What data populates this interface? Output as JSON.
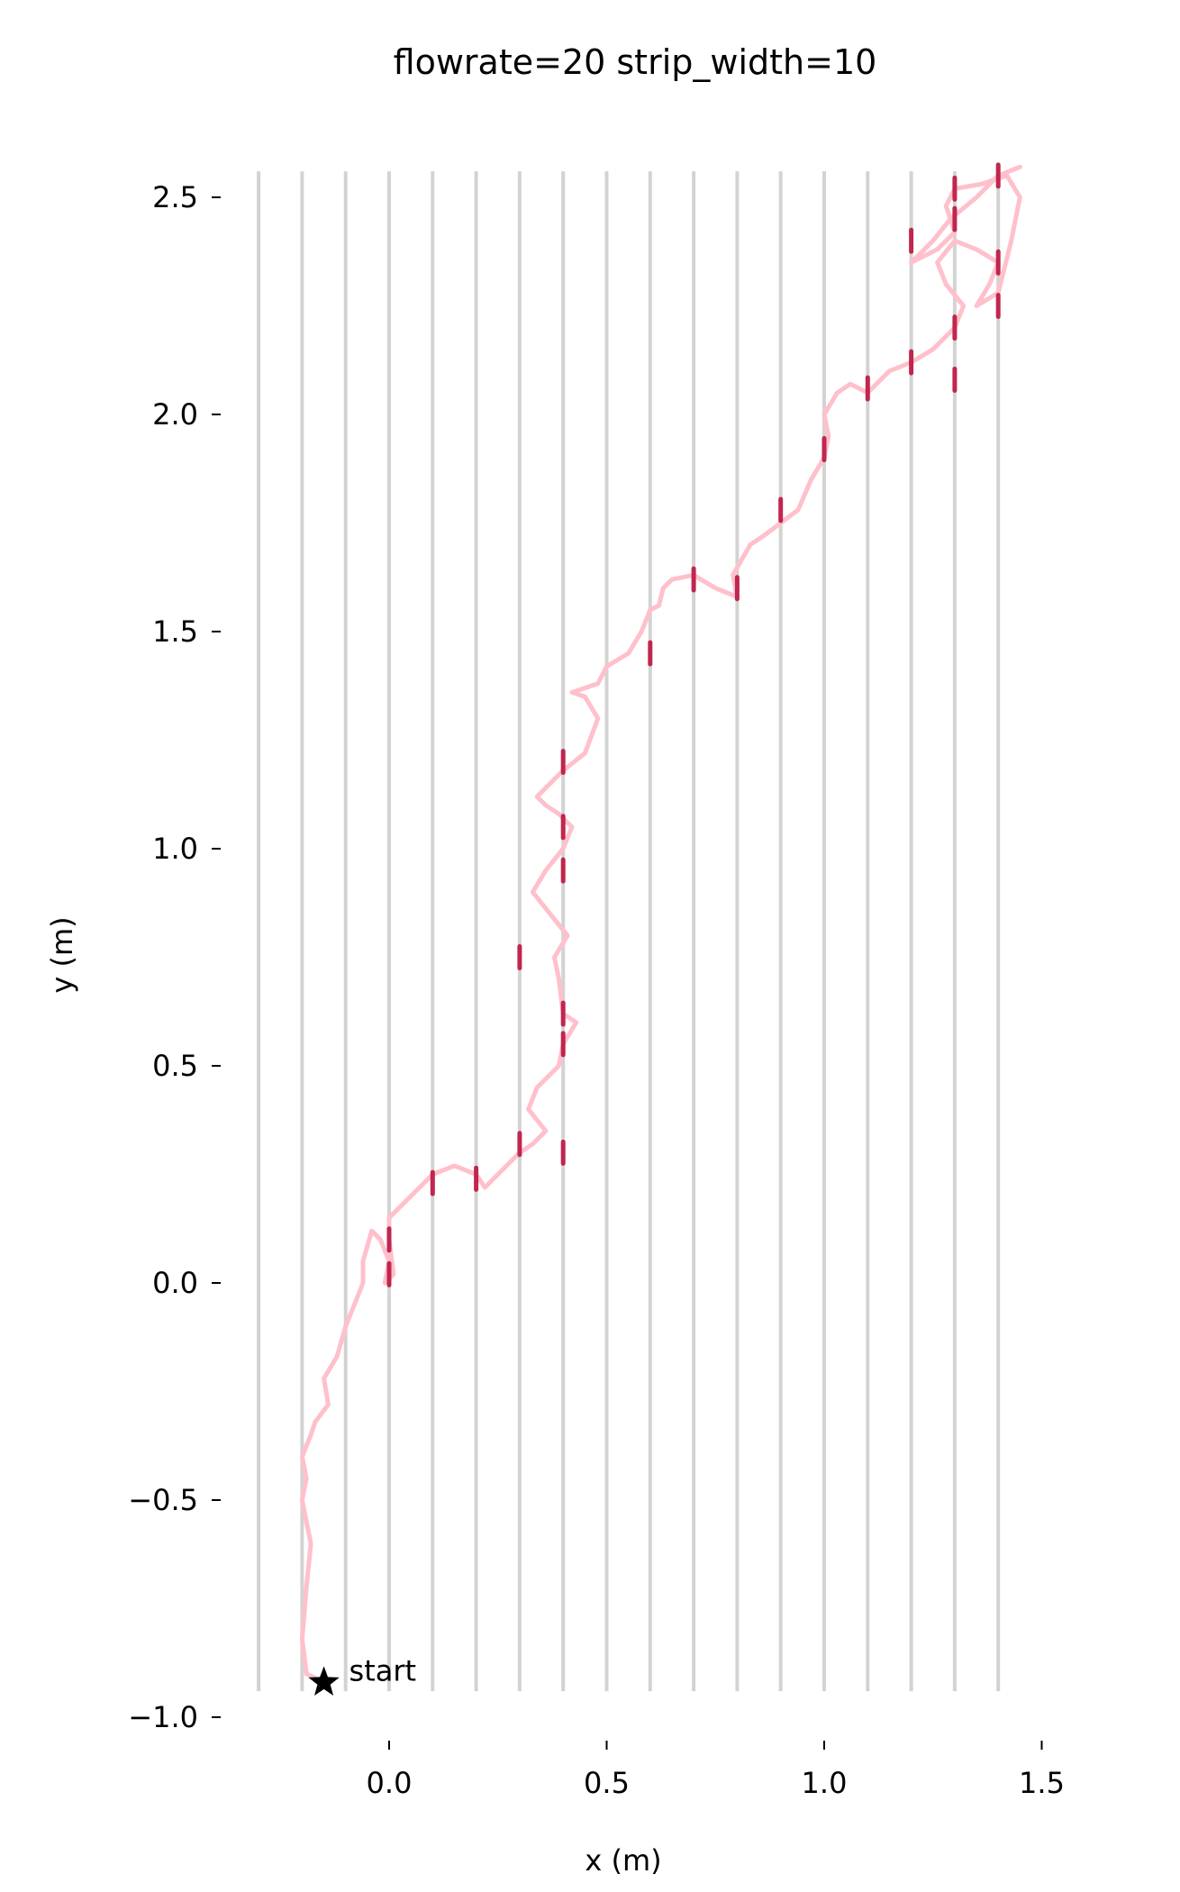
{
  "chart_data": {
    "type": "line",
    "title": "flowrate=20 strip_width=10",
    "xlabel": "x (m)",
    "ylabel": "y (m)",
    "xlim": [
      -0.35,
      1.52
    ],
    "ylim": [
      -1.0,
      2.58
    ],
    "xticks": [
      {
        "value": 0.0,
        "label": "0.0"
      },
      {
        "value": 0.5,
        "label": "0.5"
      },
      {
        "value": 1.0,
        "label": "1.0"
      },
      {
        "value": 1.5,
        "label": "1.5"
      }
    ],
    "yticks": [
      {
        "value": -1.0,
        "label": "−1.0"
      },
      {
        "value": -0.5,
        "label": "−0.5"
      },
      {
        "value": 0.0,
        "label": "0.0"
      },
      {
        "value": 0.5,
        "label": "0.5"
      },
      {
        "value": 1.0,
        "label": "1.0"
      },
      {
        "value": 1.5,
        "label": "1.5"
      },
      {
        "value": 2.0,
        "label": "2.0"
      },
      {
        "value": 2.5,
        "label": "2.5"
      }
    ],
    "strips": {
      "x": [
        -0.3,
        -0.2,
        -0.1,
        0.0,
        0.1,
        0.2,
        0.3,
        0.4,
        0.5,
        0.6,
        0.7,
        0.8,
        0.9,
        1.0,
        1.1,
        1.2,
        1.3,
        1.4
      ],
      "y_range": [
        -0.94,
        2.56
      ],
      "color": "#d3d3d3"
    },
    "grid": false,
    "series": [
      {
        "color": "#ffc0cb",
        "x": [
          -0.15,
          -0.19,
          -0.2,
          -0.19,
          -0.18,
          -0.2,
          -0.19,
          -0.2,
          -0.18,
          -0.17,
          -0.14,
          -0.15,
          -0.12,
          -0.1,
          -0.08,
          -0.06,
          -0.06,
          -0.04,
          -0.02,
          0.0,
          -0.01,
          0.01,
          0.0,
          0.0,
          0.05,
          0.1,
          0.15,
          0.2,
          0.22,
          0.3,
          0.33,
          0.36,
          0.32,
          0.34,
          0.39,
          0.4,
          0.43,
          0.4,
          0.39,
          0.38,
          0.41,
          0.37,
          0.33,
          0.36,
          0.4,
          0.42,
          0.39,
          0.36,
          0.34,
          0.4,
          0.45,
          0.48,
          0.45,
          0.42,
          0.48,
          0.5,
          0.55,
          0.58,
          0.6,
          0.62,
          0.63,
          0.65,
          0.7,
          0.75,
          0.8,
          0.79,
          0.83,
          0.86,
          0.9,
          0.94,
          0.97,
          1.0,
          1.01,
          1.0,
          1.03,
          1.06,
          1.1,
          1.15,
          1.2,
          1.25,
          1.3,
          1.32,
          1.28,
          1.26,
          1.3,
          1.35,
          1.4,
          1.38,
          1.35,
          1.4,
          1.43,
          1.45,
          1.42,
          1.36,
          1.3,
          1.28,
          1.3,
          1.26,
          1.2,
          1.25,
          1.29,
          1.35,
          1.4,
          1.45
        ],
        "y": [
          -0.92,
          -0.9,
          -0.82,
          -0.7,
          -0.6,
          -0.5,
          -0.45,
          -0.4,
          -0.35,
          -0.32,
          -0.28,
          -0.22,
          -0.17,
          -0.1,
          -0.05,
          0.0,
          0.05,
          0.12,
          0.1,
          0.05,
          0.0,
          0.02,
          0.1,
          0.15,
          0.2,
          0.25,
          0.27,
          0.25,
          0.22,
          0.3,
          0.32,
          0.35,
          0.4,
          0.45,
          0.5,
          0.55,
          0.6,
          0.62,
          0.7,
          0.75,
          0.8,
          0.85,
          0.9,
          0.95,
          1.0,
          1.05,
          1.08,
          1.1,
          1.12,
          1.18,
          1.22,
          1.3,
          1.35,
          1.36,
          1.38,
          1.42,
          1.45,
          1.5,
          1.55,
          1.56,
          1.6,
          1.62,
          1.63,
          1.6,
          1.58,
          1.63,
          1.7,
          1.72,
          1.75,
          1.78,
          1.85,
          1.9,
          1.95,
          2.0,
          2.05,
          2.07,
          2.05,
          2.1,
          2.12,
          2.15,
          2.2,
          2.25,
          2.3,
          2.35,
          2.4,
          2.38,
          2.35,
          2.3,
          2.25,
          2.28,
          2.4,
          2.5,
          2.55,
          2.53,
          2.52,
          2.48,
          2.42,
          2.38,
          2.35,
          2.4,
          2.45,
          2.5,
          2.55,
          2.57
        ]
      }
    ],
    "highlight_color": "#c0264e",
    "highlights": [
      {
        "x": 0.0,
        "y": 0.1
      },
      {
        "x": 0.0,
        "y": 0.02
      },
      {
        "x": 0.1,
        "y": 0.23
      },
      {
        "x": 0.2,
        "y": 0.24
      },
      {
        "x": 0.3,
        "y": 0.32
      },
      {
        "x": 0.4,
        "y": 0.3
      },
      {
        "x": 0.4,
        "y": 0.55
      },
      {
        "x": 0.4,
        "y": 0.62
      },
      {
        "x": 0.3,
        "y": 0.75
      },
      {
        "x": 0.4,
        "y": 0.95
      },
      {
        "x": 0.4,
        "y": 1.05
      },
      {
        "x": 0.4,
        "y": 1.2
      },
      {
        "x": 0.6,
        "y": 1.45
      },
      {
        "x": 0.7,
        "y": 1.62
      },
      {
        "x": 0.8,
        "y": 1.6
      },
      {
        "x": 0.9,
        "y": 1.78
      },
      {
        "x": 1.0,
        "y": 1.92
      },
      {
        "x": 1.1,
        "y": 2.06
      },
      {
        "x": 1.2,
        "y": 2.12
      },
      {
        "x": 1.3,
        "y": 2.08
      },
      {
        "x": 1.3,
        "y": 2.2
      },
      {
        "x": 1.4,
        "y": 2.25
      },
      {
        "x": 1.4,
        "y": 2.35
      },
      {
        "x": 1.3,
        "y": 2.45
      },
      {
        "x": 1.2,
        "y": 2.4
      },
      {
        "x": 1.3,
        "y": 2.52
      },
      {
        "x": 1.4,
        "y": 2.55
      }
    ],
    "annotations": [
      {
        "text": "start",
        "marker": "star",
        "x": -0.15,
        "y": -0.92,
        "color": "#000000"
      }
    ]
  }
}
